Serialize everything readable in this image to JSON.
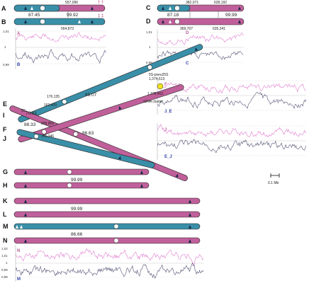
{
  "colors": {
    "blue": "#3a8fa8",
    "magenta": "#c0609a",
    "plot_m": "#e07fd0",
    "plot_b": "#555577"
  },
  "figure": {
    "chromosome_labels": {
      "A": "A",
      "B": "B",
      "C": "C",
      "D": "D",
      "E": "E",
      "I": "I",
      "F": "F",
      "J": "J",
      "G": "G",
      "H": "H",
      "K": "K",
      "L": "L",
      "M": "M",
      "N": "N"
    },
    "positions": {
      "ab_top": "557,096",
      "ab_bottom": "564,873",
      "cd_top1": "382,071",
      "cd_top2": "628,192",
      "cd_bot1": "369,707",
      "cd_bot2": "635,241",
      "e_1": "176,135",
      "e_2": "162,409",
      "j_1": "288,859",
      "j_2": "285,346",
      "ss_psu": "1,374,613",
      "rdna": "1,378,462"
    },
    "identities": {
      "ab_left": "87.45",
      "ab_right": "99.92",
      "cd_left": "87.18",
      "cd_right": "99.99",
      "e_right": "85.07",
      "e_left": "70.61",
      "f_left": "88.33",
      "f_right": "86.63",
      "gh": "99.99",
      "kl": "99.99",
      "mn": "86.66"
    },
    "annotations": {
      "ss": "5S",
      "ss_psu": "5S-pseu25S",
      "rdna": "rDNA cluster",
      "scale": "0.1 Mb"
    },
    "plot_labels": {
      "ab_top": "A",
      "ab_bottom": "B",
      "cd_top": "D",
      "cd_bottom": "C",
      "ej_top": "F",
      "ej_bottom": "J_E",
      "ej2_top": "J",
      "ej2_bottom": "E_J",
      "mn_top": "N",
      "mn_bottom": "M"
    },
    "ticks": {
      "ab": [
        "1,01",
        "1",
        "0,99"
      ],
      "cd": [
        "1,01",
        "1",
        "0,99"
      ],
      "mn": [
        "1,02",
        "1,01",
        "1",
        "0,99",
        "0,98"
      ]
    }
  }
}
